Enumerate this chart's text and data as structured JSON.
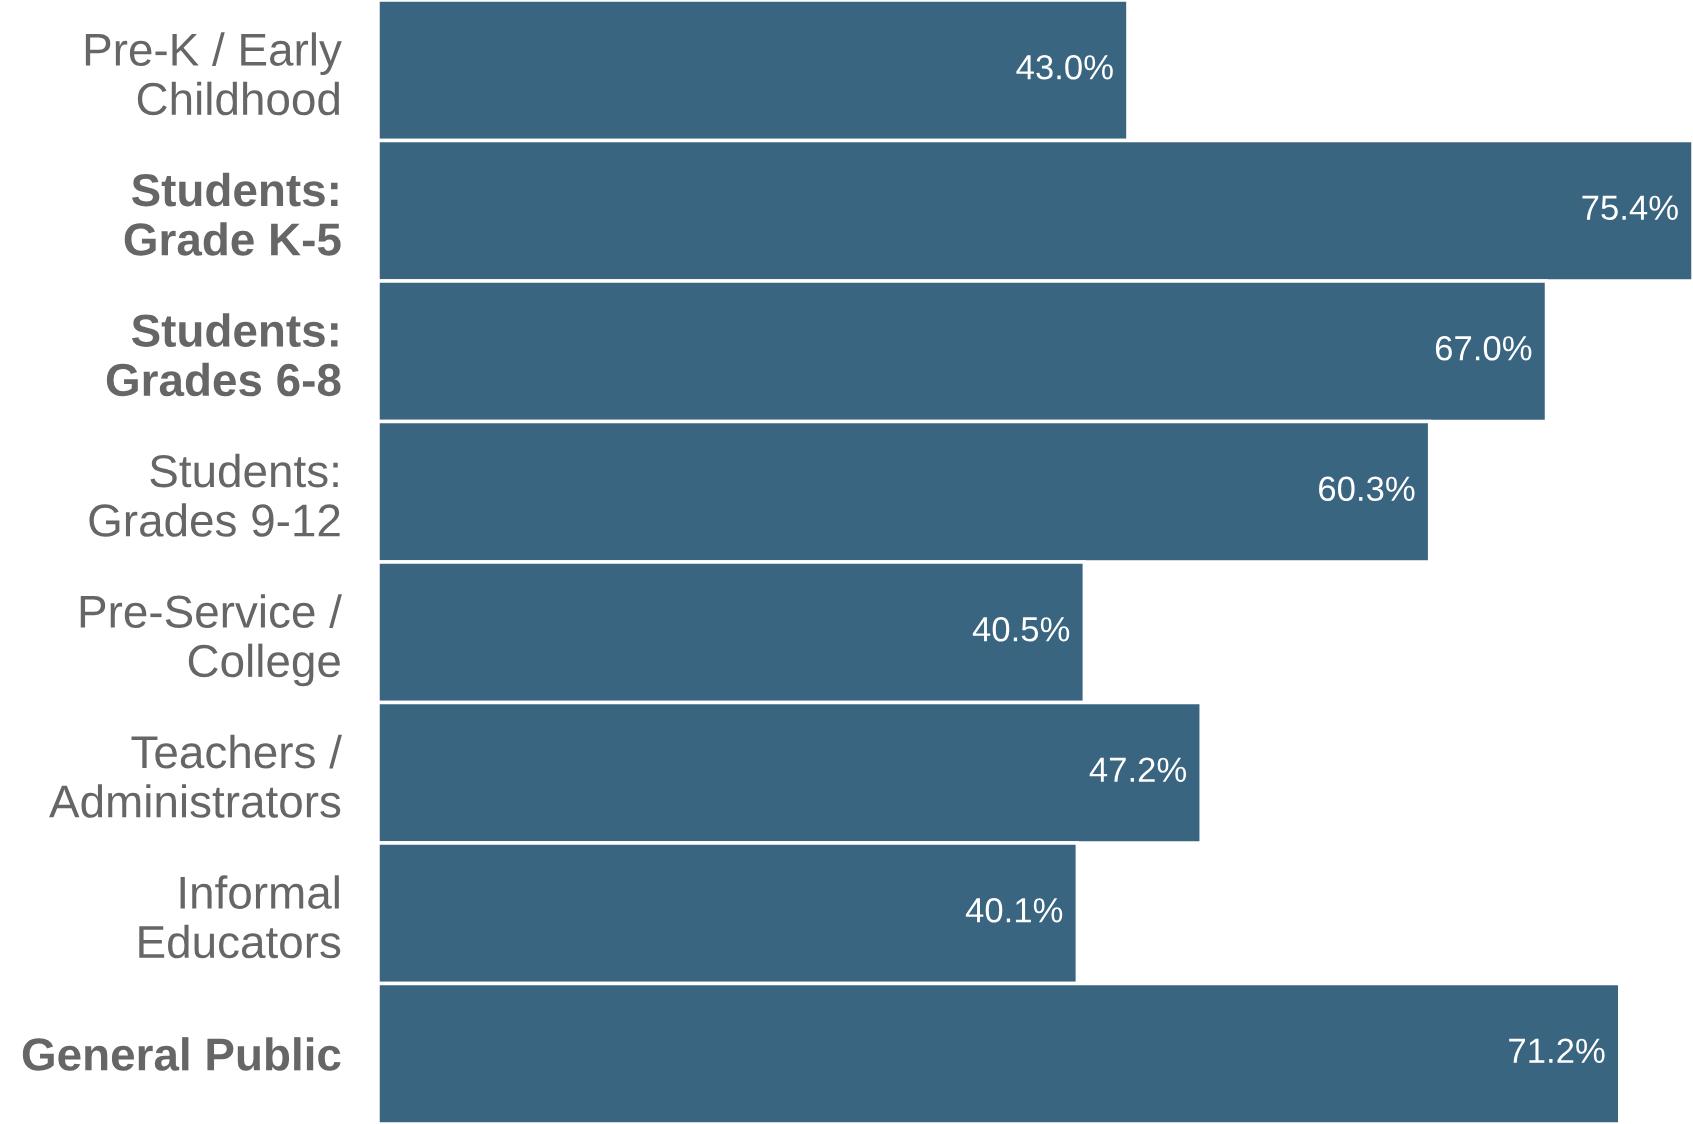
{
  "chart_data": {
    "type": "bar",
    "orientation": "horizontal",
    "categories": [
      "Pre-K / Early\nChildhood",
      "Students:\nGrade K-5",
      "Students:\nGrades 6-8",
      "Students:\nGrades 9-12",
      "Pre-Service /\nCollege",
      "Teachers /\nAdministrators",
      "Informal\nEducators",
      "General Public"
    ],
    "values": [
      43.0,
      75.4,
      67.0,
      60.3,
      40.5,
      47.2,
      40.1,
      71.2
    ],
    "value_labels": [
      "43.0%",
      "75.4%",
      "67.0%",
      "60.3%",
      "40.5%",
      "47.2%",
      "40.1%",
      "71.2%"
    ],
    "color": "#3a6580",
    "grid": false,
    "legend": false
  }
}
